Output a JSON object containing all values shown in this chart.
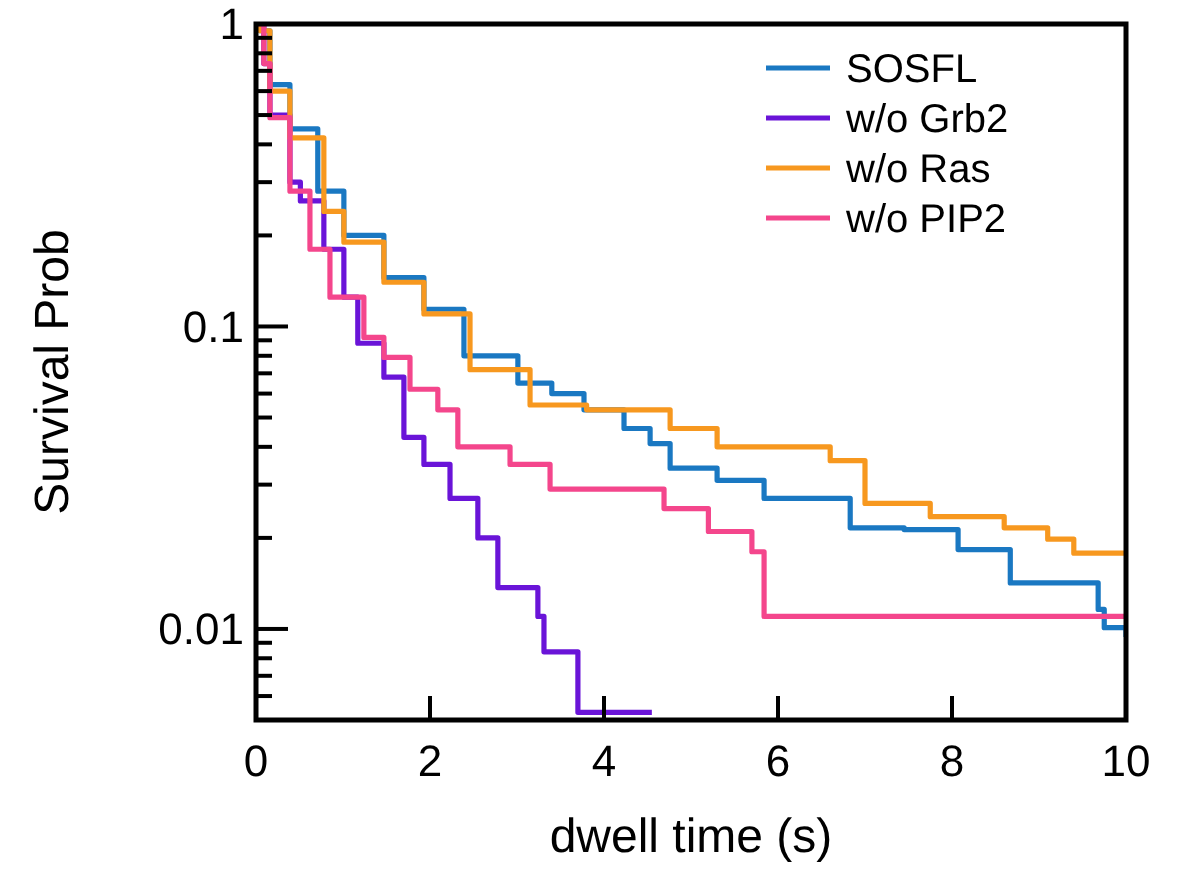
{
  "chart_data": {
    "type": "step",
    "xlabel": "dwell time (s)",
    "ylabel": "Survival Prob",
    "log": "y",
    "xlim": [
      0,
      10
    ],
    "ylim": [
      0.005,
      1
    ],
    "xticks": [
      0,
      2,
      4,
      6,
      8,
      10
    ],
    "yticks": [
      {
        "value": 0.005,
        "label": null
      },
      {
        "value": 0.006,
        "label": null
      },
      {
        "value": 0.007,
        "label": null
      },
      {
        "value": 0.008,
        "label": null
      },
      {
        "value": 0.009,
        "label": null
      },
      0.01,
      {
        "value": 0.02,
        "label": null
      },
      {
        "value": 0.03,
        "label": null
      },
      {
        "value": 0.04,
        "label": null
      },
      {
        "value": 0.05,
        "label": null
      },
      {
        "value": 0.06,
        "label": null
      },
      {
        "value": 0.07,
        "label": null
      },
      {
        "value": 0.08,
        "label": null
      },
      {
        "value": 0.09,
        "label": null
      },
      0.1,
      {
        "value": 0.2,
        "label": null
      },
      {
        "value": 0.3,
        "label": null
      },
      {
        "value": 0.4,
        "label": null
      },
      {
        "value": 0.5,
        "label": null
      },
      {
        "value": 0.6,
        "label": null
      },
      {
        "value": 0.7,
        "label": null
      },
      {
        "value": 0.8,
        "label": null
      },
      {
        "value": 0.9,
        "label": null
      },
      1
    ],
    "legend": "top right",
    "grid": false,
    "line_style": "solid",
    "series": [
      {
        "name": "SOSFL",
        "color": "#1a78c2",
        "x": [
          0,
          0.05,
          0.16,
          0.39,
          0.71,
          1.01,
          1.47,
          1.93,
          2.39,
          3.01,
          3.4,
          3.77,
          4.23,
          4.53,
          4.76,
          5.3,
          5.84,
          6.83,
          7.45,
          8.07,
          8.67,
          9.68,
          9.75,
          10
        ],
        "values": [
          1,
          0.95,
          0.63,
          0.45,
          0.28,
          0.2,
          0.145,
          0.114,
          0.08,
          0.065,
          0.06,
          0.053,
          0.046,
          0.041,
          0.034,
          0.031,
          0.027,
          0.0216,
          0.0213,
          0.0183,
          0.0142,
          0.0116,
          0.0101,
          0.0094
        ]
      },
      {
        "name": "w/o Grb2",
        "color": "#6a14d8",
        "x": [
          0,
          0.09,
          0.16,
          0.39,
          0.51,
          0.78,
          1.01,
          1.17,
          1.47,
          1.7,
          1.93,
          2.23,
          2.55,
          2.78,
          3.24,
          3.31,
          3.7,
          4.55
        ],
        "values": [
          1,
          0.74,
          0.5,
          0.3,
          0.26,
          0.18,
          0.125,
          0.088,
          0.068,
          0.043,
          0.035,
          0.027,
          0.02,
          0.0137,
          0.011,
          0.0084,
          0.0053,
          0.0053
        ]
      },
      {
        "name": "w/o Ras",
        "color": "#f7981f",
        "x": [
          0,
          0.05,
          0.16,
          0.39,
          0.78,
          1.01,
          1.47,
          1.93,
          2.46,
          3.15,
          3.8,
          4.76,
          5.3,
          6.6,
          7.0,
          7.75,
          8.6,
          9.1,
          9.4,
          10
        ],
        "values": [
          1,
          0.95,
          0.6,
          0.42,
          0.24,
          0.19,
          0.14,
          0.11,
          0.072,
          0.055,
          0.053,
          0.046,
          0.04,
          0.036,
          0.026,
          0.0235,
          0.0216,
          0.0198,
          0.0178,
          0.0178
        ]
      },
      {
        "name": "w/o PIP2",
        "color": "#f4468c",
        "x": [
          0,
          0.09,
          0.16,
          0.39,
          0.62,
          0.85,
          1.24,
          1.47,
          1.77,
          2.09,
          2.32,
          2.92,
          3.38,
          4.69,
          5.2,
          5.7,
          5.84,
          10
        ],
        "values": [
          1,
          0.74,
          0.49,
          0.28,
          0.18,
          0.125,
          0.092,
          0.079,
          0.062,
          0.053,
          0.04,
          0.035,
          0.029,
          0.025,
          0.021,
          0.018,
          0.011,
          0.011
        ]
      }
    ]
  }
}
